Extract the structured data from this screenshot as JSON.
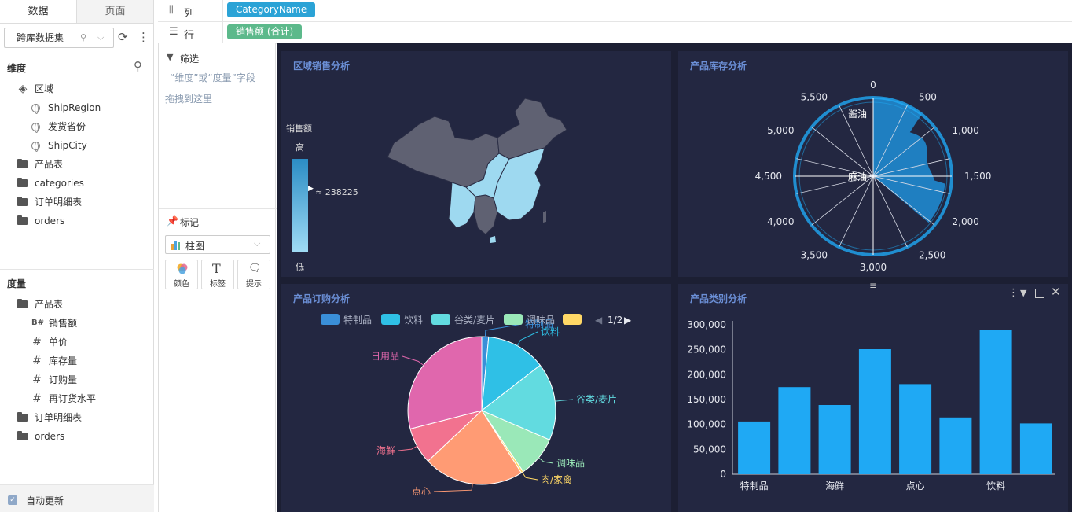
{
  "left": {
    "tabs": [
      "数据",
      "页面"
    ],
    "dataset": "跨库数据集",
    "dimensions_label": "维度",
    "dimensions": [
      {
        "label": "区域",
        "icon": "layers-icon",
        "indent": 0
      },
      {
        "label": "ShipRegion",
        "icon": "globe-icon",
        "indent": 1
      },
      {
        "label": "发货省份",
        "icon": "globe-icon",
        "indent": 1
      },
      {
        "label": "ShipCity",
        "icon": "globe-icon",
        "indent": 1
      },
      {
        "label": "产品表",
        "icon": "folder-icon",
        "indent": 0
      },
      {
        "label": "categories",
        "icon": "folder-icon",
        "indent": 0
      },
      {
        "label": "订单明细表",
        "icon": "folder-icon",
        "indent": 0
      },
      {
        "label": "orders",
        "icon": "folder-icon",
        "indent": 0
      }
    ],
    "measures_label": "度量",
    "measures": [
      {
        "label": "产品表",
        "icon": "folder-open-icon",
        "indent": 0
      },
      {
        "label": "销售额",
        "icon": "measure-icon",
        "indent": 1
      },
      {
        "label": "单价",
        "icon": "hash-icon",
        "indent": 1
      },
      {
        "label": "库存量",
        "icon": "hash-icon",
        "indent": 1
      },
      {
        "label": "订购量",
        "icon": "hash-icon",
        "indent": 1
      },
      {
        "label": "再订货水平",
        "icon": "hash-icon",
        "indent": 1
      },
      {
        "label": "订单明细表",
        "icon": "folder-icon",
        "indent": 0
      },
      {
        "label": "orders",
        "icon": "folder-icon",
        "indent": 0
      }
    ],
    "auto_update": "自动更新"
  },
  "shelf": {
    "columns_label": "列",
    "columns_pill": "CategoryName",
    "rows_label": "行",
    "rows_pill": "销售额 (合计)"
  },
  "filter": {
    "title": "筛选",
    "hint1": "“维度”或“度量”字段",
    "hint2": "拖拽到这里"
  },
  "marks": {
    "title": "标记",
    "chart_type": "柱图",
    "buttons": [
      "颜色",
      "标签",
      "提示"
    ]
  },
  "dashboard": {
    "map": {
      "title": "区域销售分析",
      "legend_title": "销售额",
      "legend_high": "高",
      "legend_low": "低",
      "legend_value": "≈ 238225"
    },
    "polar": {
      "title": "产品库存分析",
      "ticks": [
        "0",
        "500",
        "1,000",
        "1,500",
        "2,000",
        "2,500",
        "3,000",
        "3,500",
        "4,000",
        "4,500",
        "5,000",
        "5,500"
      ],
      "labels": [
        "酱油",
        "麻油"
      ]
    },
    "pie": {
      "title": "产品订购分析",
      "legend": [
        "特制品",
        "饮料",
        "谷类/麦片",
        "调味品",
        ""
      ],
      "legend_page": "1/2",
      "slice_labels": [
        "特制品",
        "饮料",
        "谷类/麦片",
        "调味品",
        "肉/家禽",
        "点心",
        "海鲜",
        "日用品"
      ]
    },
    "bar": {
      "title": "产品类别分析"
    }
  },
  "colors": {
    "dash_bg": "#1c1f33",
    "card_bg": "#232741",
    "title": "#6b8fd6",
    "bar": "#1fa9f4",
    "pill_col": "#2ba3d6",
    "pill_row": "#5cb98b"
  },
  "chart_data": [
    {
      "type": "pie",
      "title": "产品订购分析",
      "categories": [
        "特制品",
        "饮料",
        "谷类/麦片",
        "调味品",
        "肉/家禽",
        "点心",
        "海鲜",
        "日用品"
      ],
      "values": [
        1.5,
        13,
        17,
        9,
        0.5,
        22,
        8,
        29
      ],
      "colors": [
        "#3a8fd8",
        "#2fc0e6",
        "#62dbe0",
        "#9ae8b8",
        "#ffd866",
        "#ff9b74",
        "#f2728f",
        "#e067ad"
      ]
    },
    {
      "type": "bar",
      "title": "产品类别分析",
      "categories": [
        "特制品",
        "",
        "海鲜",
        "",
        "点心",
        "",
        "饮料",
        ""
      ],
      "values": [
        106000,
        175000,
        139000,
        251000,
        181000,
        114000,
        290000,
        102000
      ],
      "ylim": [
        0,
        300000
      ],
      "yticks": [
        "0",
        "50,000",
        "100,000",
        "150,000",
        "200,000",
        "250,000",
        "300,000"
      ]
    }
  ]
}
